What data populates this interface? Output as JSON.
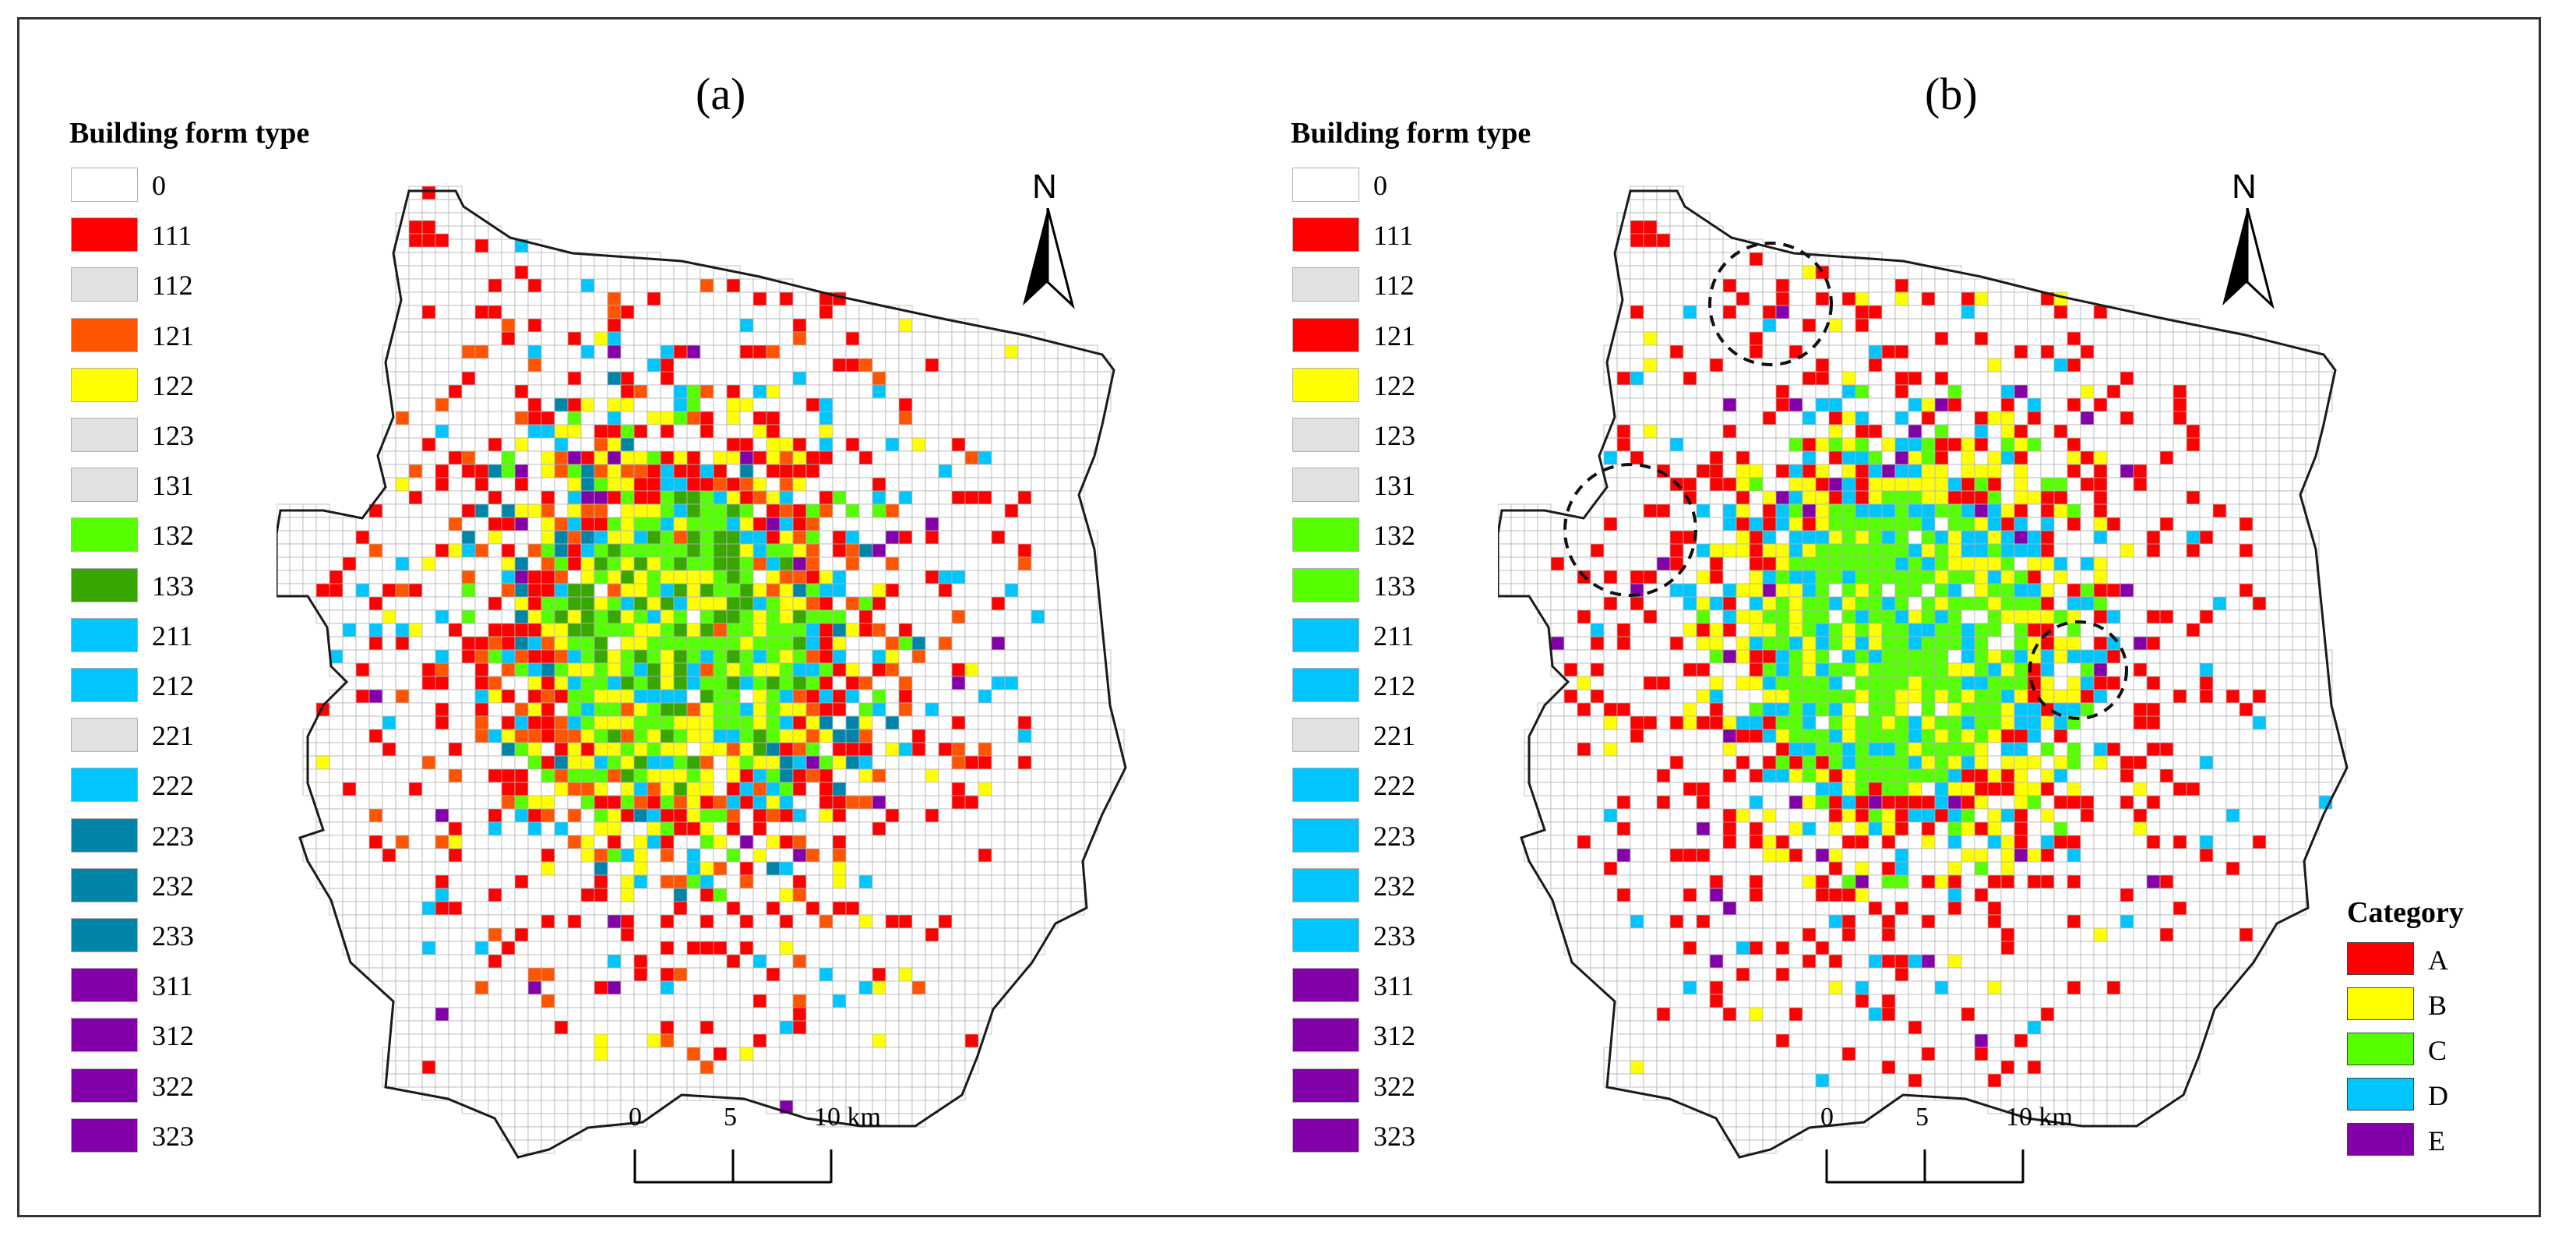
{
  "panels": [
    {
      "label": "(a)",
      "legend_title": "Building form type",
      "legend": [
        {
          "code": "0",
          "color": "#ffffff"
        },
        {
          "code": "111",
          "color": "#ff0000"
        },
        {
          "code": "112",
          "color": "#e1e1e1"
        },
        {
          "code": "121",
          "color": "#ff5500"
        },
        {
          "code": "122",
          "color": "#ffff00"
        },
        {
          "code": "123",
          "color": "#e1e1e1"
        },
        {
          "code": "131",
          "color": "#e1e1e1"
        },
        {
          "code": "132",
          "color": "#55ff00"
        },
        {
          "code": "133",
          "color": "#38a800"
        },
        {
          "code": "211",
          "color": "#00c5ff"
        },
        {
          "code": "212",
          "color": "#00c5ff"
        },
        {
          "code": "221",
          "color": "#e1e1e1"
        },
        {
          "code": "222",
          "color": "#00c5ff"
        },
        {
          "code": "223",
          "color": "#0084a8"
        },
        {
          "code": "232",
          "color": "#0084a8"
        },
        {
          "code": "233",
          "color": "#0084a8"
        },
        {
          "code": "311",
          "color": "#8400a8"
        },
        {
          "code": "312",
          "color": "#8400a8"
        },
        {
          "code": "322",
          "color": "#8400a8"
        },
        {
          "code": "323",
          "color": "#8400a8"
        }
      ],
      "north_label": "N",
      "scale_ticks": [
        "0",
        "5",
        "10 km"
      ]
    },
    {
      "label": "(b)",
      "legend_title": "Building form type",
      "legend": [
        {
          "code": "0",
          "color": "#ffffff"
        },
        {
          "code": "111",
          "color": "#ff0000"
        },
        {
          "code": "112",
          "color": "#e1e1e1"
        },
        {
          "code": "121",
          "color": "#ff0000"
        },
        {
          "code": "122",
          "color": "#ffff00"
        },
        {
          "code": "123",
          "color": "#e1e1e1"
        },
        {
          "code": "131",
          "color": "#e1e1e1"
        },
        {
          "code": "132",
          "color": "#55ff00"
        },
        {
          "code": "133",
          "color": "#55ff00"
        },
        {
          "code": "211",
          "color": "#00c5ff"
        },
        {
          "code": "212",
          "color": "#00c5ff"
        },
        {
          "code": "221",
          "color": "#e1e1e1"
        },
        {
          "code": "222",
          "color": "#00c5ff"
        },
        {
          "code": "223",
          "color": "#00c5ff"
        },
        {
          "code": "232",
          "color": "#00c5ff"
        },
        {
          "code": "233",
          "color": "#00c5ff"
        },
        {
          "code": "311",
          "color": "#8400a8"
        },
        {
          "code": "312",
          "color": "#8400a8"
        },
        {
          "code": "322",
          "color": "#8400a8"
        },
        {
          "code": "323",
          "color": "#8400a8"
        }
      ],
      "north_label": "N",
      "scale_ticks": [
        "0",
        "5",
        "10 km"
      ],
      "category_legend": {
        "title": "Category",
        "items": [
          {
            "label": "A",
            "color": "#ff0000"
          },
          {
            "label": "B",
            "color": "#ffff00"
          },
          {
            "label": "C",
            "color": "#55ff00"
          },
          {
            "label": "D",
            "color": "#00c5ff"
          },
          {
            "label": "E",
            "color": "#8400a8"
          }
        ]
      }
    }
  ],
  "colors": {
    "grid_line": "#b4b4b4",
    "boundary": "#1a1a1a",
    "highlight_circle": "#111111"
  }
}
